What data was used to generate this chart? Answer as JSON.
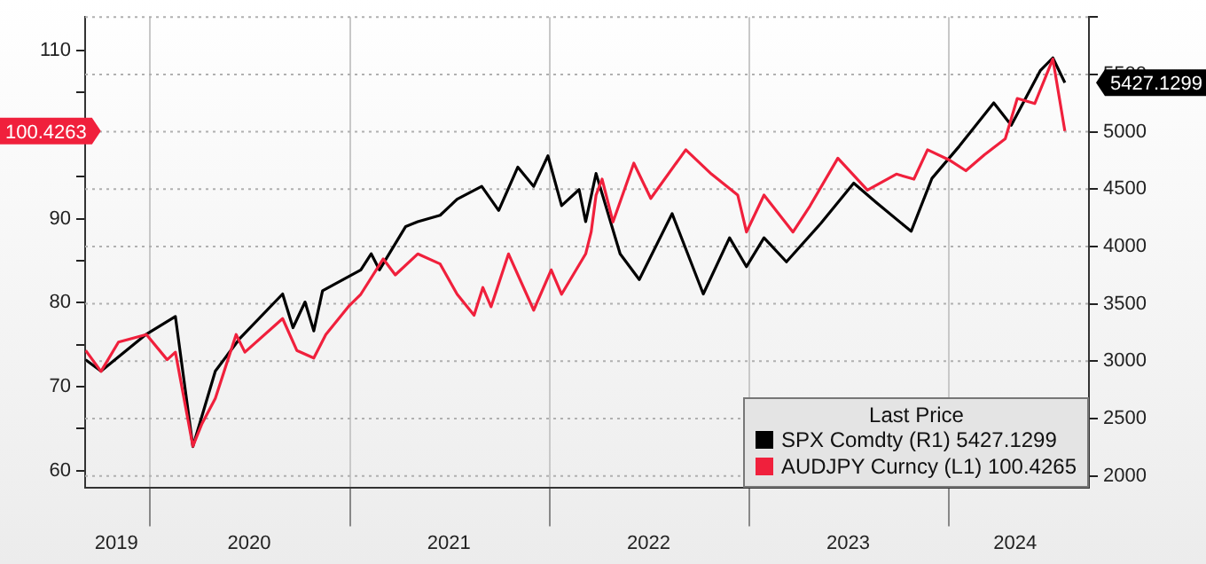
{
  "chart_data": {
    "type": "line",
    "legend_title": "Last Price",
    "legend": "bottom right",
    "grid": true,
    "line_style": "solid",
    "marker": "none",
    "annotations": [
      "5427.1299",
      "100.4263"
    ],
    "xlim": [
      "2019-09-05",
      "2024-09-13"
    ],
    "xticks": [
      {
        "value": "2020-01-01",
        "label": null
      },
      {
        "value": "2021-01-01",
        "label": null
      },
      {
        "value": "2022-01-01",
        "label": null
      },
      {
        "value": "2023-01-01",
        "label": null
      },
      {
        "value": "2024-01-01",
        "label": null
      },
      {
        "value": "2019-11-01",
        "label": "2019"
      },
      {
        "value": "2020-07-01",
        "label": "2020"
      },
      {
        "value": "2021-07-01",
        "label": "2021"
      },
      {
        "value": "2022-07-01",
        "label": "2022"
      },
      {
        "value": "2023-07-01",
        "label": "2023"
      },
      {
        "value": "2024-05-01",
        "label": "2024"
      }
    ],
    "ylim": [
      58,
      114
    ],
    "yticks": [
      60,
      {
        "value": 65,
        "label": null
      },
      70,
      {
        "value": 75,
        "label": null
      },
      80,
      {
        "value": 85,
        "label": null
      },
      90,
      {
        "value": 95,
        "label": null
      },
      {
        "value": 100,
        "label": null
      },
      {
        "value": 105,
        "label": null
      },
      110
    ],
    "y2lim": [
      1900,
      6000
    ],
    "y2ticks": [
      2000,
      2500,
      3000,
      3500,
      4000,
      4500,
      5000,
      5500,
      {
        "value": 6000,
        "label": null
      }
    ],
    "series": [
      {
        "name": "SPX Comdty (R1) 5427.1299",
        "color": "#000000",
        "axis": "y2",
        "x": [
          "2019-09-06",
          "2019-10-04",
          "2019-12-26",
          "2020-02-17",
          "2020-03-20",
          "2020-04-30",
          "2020-06-13",
          "2020-08-31",
          "2020-09-19",
          "2020-10-11",
          "2020-10-27",
          "2020-11-12",
          "2021-01-21",
          "2021-02-09",
          "2021-02-24",
          "2021-04-13",
          "2021-05-05",
          "2021-06-15",
          "2021-07-16",
          "2021-08-30",
          "2021-09-30",
          "2021-11-04",
          "2021-12-03",
          "2021-12-29",
          "2022-01-23",
          "2022-02-24",
          "2022-03-08",
          "2022-03-27",
          "2022-05-10",
          "2022-06-14",
          "2022-08-13",
          "2022-10-09",
          "2022-11-26",
          "2022-12-27",
          "2023-01-28",
          "2023-03-10",
          "2023-05-12",
          "2023-07-11",
          "2023-08-21",
          "2023-10-24",
          "2023-12-01",
          "2024-01-20",
          "2024-03-23",
          "2024-04-24",
          "2024-06-16",
          "2024-07-09",
          "2024-07-31"
        ],
        "values": [
          3012,
          2914,
          3236,
          3390,
          2256,
          2914,
          3194,
          3586,
          3292,
          3516,
          3264,
          3614,
          3796,
          3936,
          3796,
          4174,
          4216,
          4272,
          4412,
          4524,
          4314,
          4692,
          4524,
          4790,
          4356,
          4496,
          4216,
          4636,
          3936,
          3712,
          4286,
          3586,
          4076,
          3824,
          4076,
          3866,
          4202,
          4552,
          4384,
          4132,
          4594,
          4874,
          5252,
          5056,
          5532,
          5644,
          5427.1299
        ]
      },
      {
        "name": "AUDJPY Curncy (L1) 100.4265",
        "color": "#f0203c",
        "axis": "y",
        "x": [
          "2019-09-06",
          "2019-10-04",
          "2019-11-05",
          "2019-12-26",
          "2020-02-02",
          "2020-02-17",
          "2020-03-20",
          "2020-04-05",
          "2020-04-30",
          "2020-06-07",
          "2020-06-23",
          "2020-08-31",
          "2020-09-26",
          "2020-10-27",
          "2020-11-18",
          "2020-12-29",
          "2021-01-21",
          "2021-03-03",
          "2021-03-25",
          "2021-05-05",
          "2021-06-15",
          "2021-07-16",
          "2021-08-16",
          "2021-09-01",
          "2021-09-16",
          "2021-10-18",
          "2021-12-03",
          "2022-01-04",
          "2022-01-23",
          "2022-03-08",
          "2022-03-18",
          "2022-03-27",
          "2022-04-07",
          "2022-04-27",
          "2022-06-04",
          "2022-07-05",
          "2022-09-07",
          "2022-10-24",
          "2022-12-11",
          "2022-12-27",
          "2023-01-28",
          "2023-03-22",
          "2023-04-22",
          "2023-06-12",
          "2023-08-05",
          "2023-09-27",
          "2023-10-29",
          "2023-11-23",
          "2024-01-01",
          "2024-02-01",
          "2024-03-06",
          "2024-04-13",
          "2024-05-05",
          "2024-06-06",
          "2024-07-09",
          "2024-07-31"
        ],
        "values": [
          74.3,
          71.8,
          75.3,
          76.2,
          73.2,
          74.1,
          62.9,
          65.5,
          68.6,
          76.2,
          74.1,
          78.1,
          74.3,
          73.4,
          76.2,
          79.5,
          81.0,
          85.2,
          83.3,
          85.8,
          84.6,
          81.0,
          78.5,
          81.8,
          79.5,
          85.8,
          79.1,
          83.9,
          81.0,
          85.8,
          88.4,
          92.8,
          94.7,
          89.6,
          96.6,
          92.4,
          98.2,
          95.3,
          92.8,
          88.4,
          92.8,
          88.4,
          91.5,
          97.2,
          93.4,
          95.3,
          94.7,
          98.2,
          97.0,
          95.7,
          97.6,
          99.5,
          104.3,
          103.7,
          109.0,
          100.4263
        ]
      }
    ]
  }
}
